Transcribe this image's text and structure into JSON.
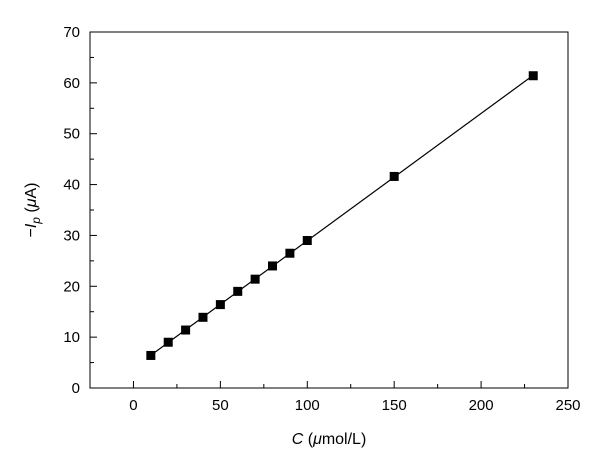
{
  "chart_data": {
    "type": "scatter",
    "title": "",
    "xlabel": {
      "symbol": "C",
      "unit_prefix": " (",
      "unit_mu": "μ",
      "unit_rest": "mol/L)"
    },
    "ylabel": {
      "minus": "−",
      "symbol": "I",
      "subscript": "p",
      "unit_prefix": " (",
      "unit_mu": "μ",
      "unit_rest": "A)"
    },
    "xlim": [
      -25,
      250
    ],
    "ylim": [
      0,
      70
    ],
    "x_ticks": [
      0,
      50,
      100,
      150,
      200,
      250
    ],
    "y_ticks": [
      0,
      10,
      20,
      30,
      40,
      50,
      60,
      70
    ],
    "x_tick_labels": [
      "0",
      "50",
      "100",
      "150",
      "200",
      "250"
    ],
    "y_tick_labels": [
      "0",
      "10",
      "20",
      "30",
      "40",
      "50",
      "60",
      "70"
    ],
    "grid": false,
    "legend": "none",
    "marker": "square",
    "fit_line": true,
    "series": [
      {
        "x": [
          10,
          20,
          30,
          40,
          50,
          60,
          70,
          80,
          90,
          100,
          150,
          230
        ],
        "y": [
          6.4,
          9.0,
          11.4,
          13.9,
          16.4,
          19.0,
          21.4,
          24.0,
          26.5,
          29.0,
          41.6,
          61.4
        ]
      }
    ],
    "colors": {
      "marker": "#000000",
      "line": "#000000",
      "axis": "#000000"
    }
  }
}
